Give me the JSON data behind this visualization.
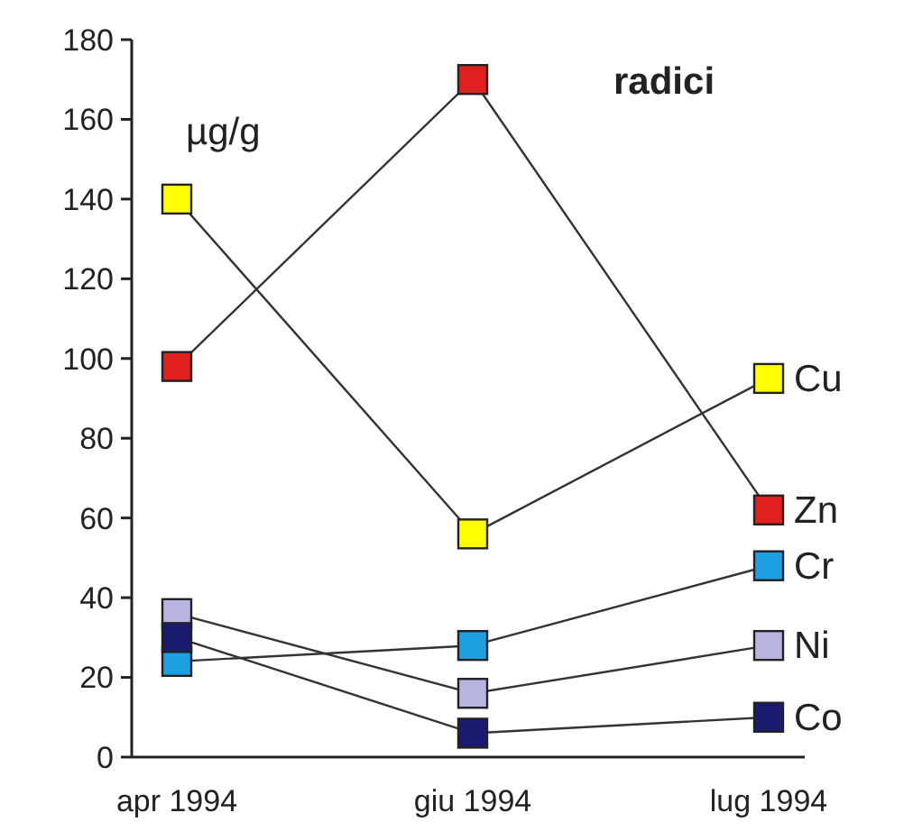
{
  "chart_data": {
    "type": "line",
    "title": "radici",
    "ylabel": "µg/g",
    "categories": [
      "apr 1994",
      "giu 1994",
      "lug 1994"
    ],
    "ylim": [
      0,
      180
    ],
    "yticks": [
      0,
      20,
      40,
      60,
      80,
      100,
      120,
      140,
      160,
      180
    ],
    "grid": false,
    "marker": "square",
    "series": [
      {
        "name": "Cu",
        "color": "#ffff00",
        "values": [
          140,
          56,
          95
        ]
      },
      {
        "name": "Zn",
        "color": "#e0201f",
        "values": [
          98,
          170,
          62
        ]
      },
      {
        "name": "Cr",
        "color": "#1ea0e0",
        "values": [
          24,
          28,
          48
        ]
      },
      {
        "name": "Ni",
        "color": "#b8b4e0",
        "values": [
          36,
          16,
          28
        ]
      },
      {
        "name": "Co",
        "color": "#1a1a6e",
        "values": [
          30,
          6,
          10
        ]
      }
    ]
  }
}
